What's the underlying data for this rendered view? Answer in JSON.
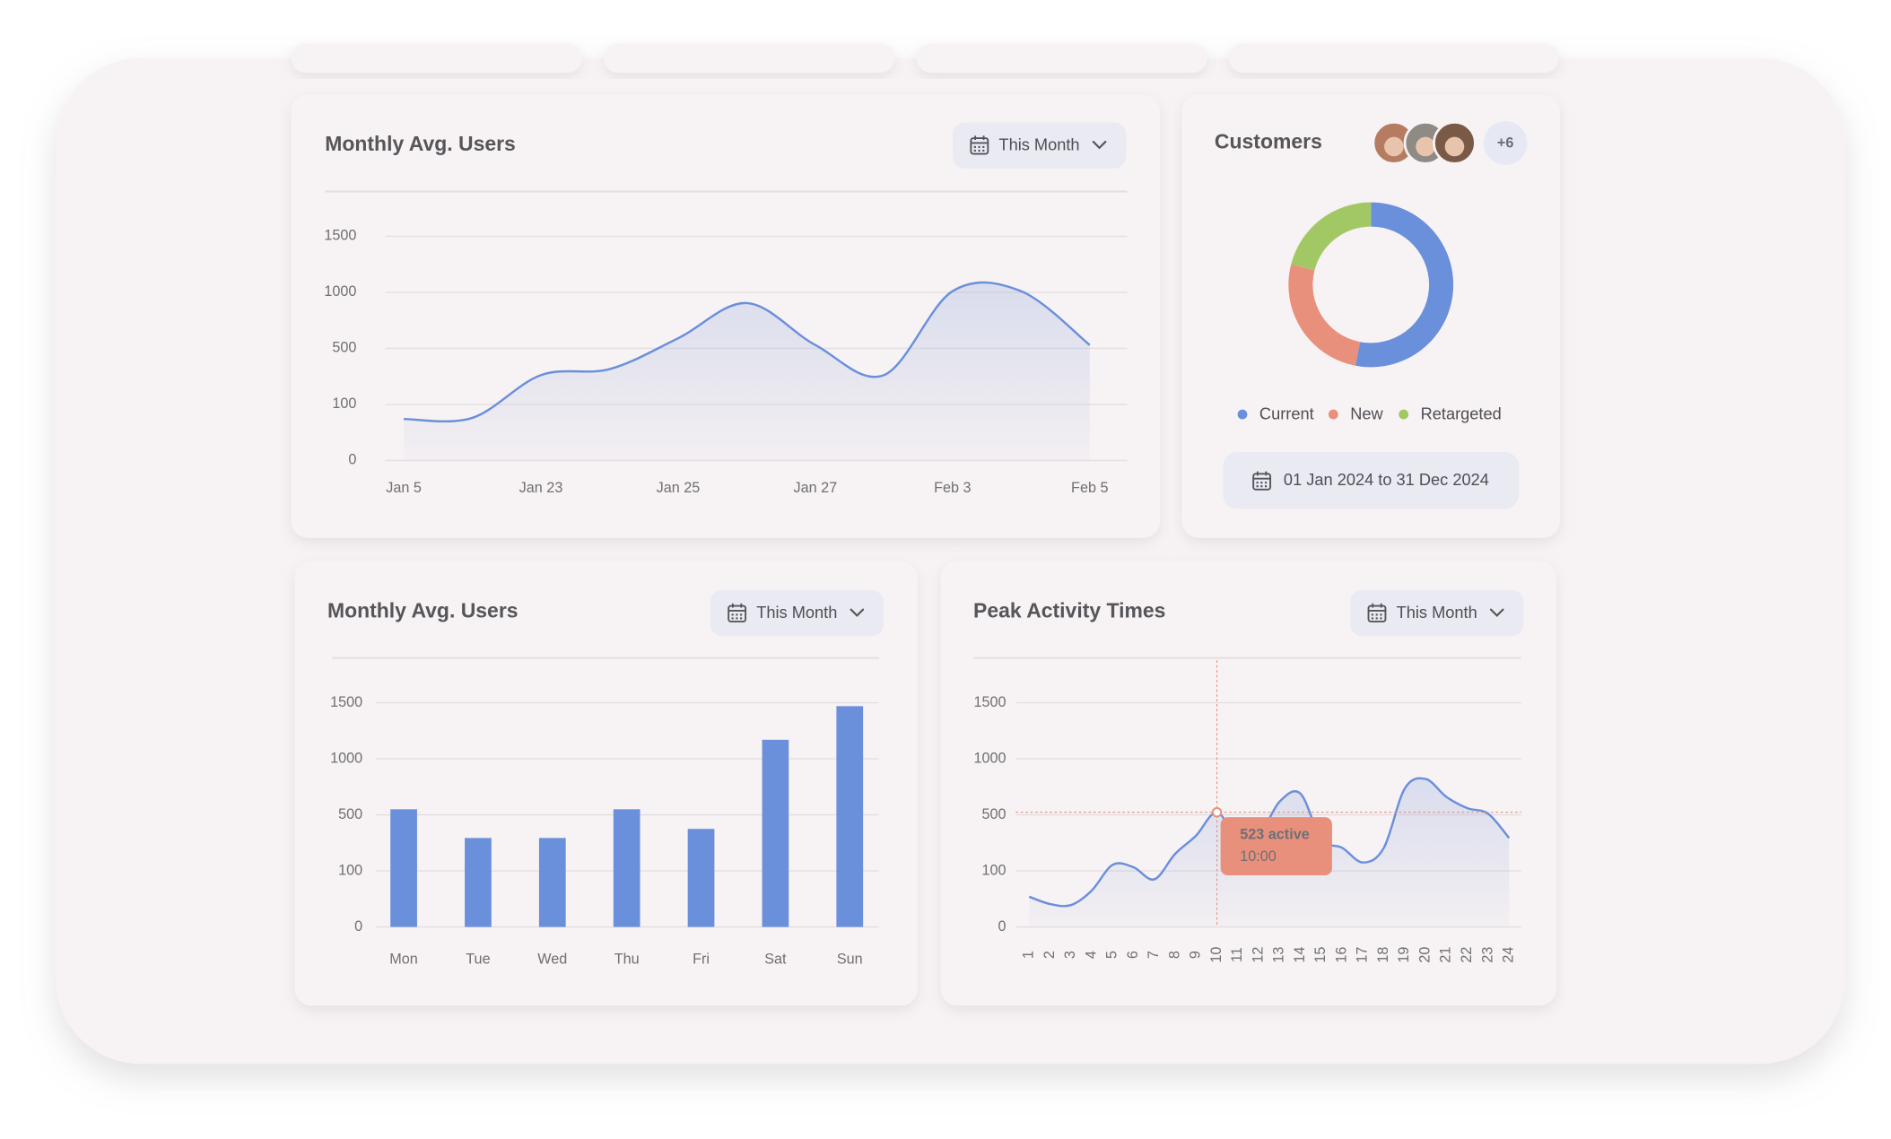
{
  "chart_data": [
    {
      "type": "line",
      "title": "Monthly Avg. Users",
      "filter": "This Month",
      "categories": [
        "Jan 5",
        null,
        "Jan 23",
        null,
        "Jan 25",
        null,
        "Jan 27",
        null,
        "Feb 3",
        null,
        "Feb 5"
      ],
      "values": [
        74,
        76,
        309,
        352,
        590,
        904,
        530,
        309,
        1010,
        1010,
        530
      ],
      "color": "#6a8fdb",
      "area": true,
      "ylim": [
        0,
        1500
      ],
      "yticks": [
        0,
        100,
        500,
        1000,
        1500
      ],
      "y_scale": "piecewise",
      "grid": true
    },
    {
      "type": "pie",
      "title": "Customers",
      "extra_count": "+6",
      "date_range": "01 Jan 2024 to 31 Dec 2024",
      "categories": [
        "Current",
        "New",
        "Retargeted"
      ],
      "values": [
        53,
        26,
        21
      ],
      "colors": [
        "#6a8fdb",
        "#e8907b",
        "#a2c865"
      ],
      "donut": true,
      "legend": "bottom"
    },
    {
      "type": "bar",
      "title": "Monthly Avg. Users",
      "filter": "This Month",
      "categories": [
        "Mon",
        "Tue",
        "Wed",
        "Thu",
        "Fri",
        "Sat",
        "Sun"
      ],
      "values": [
        550,
        335,
        335,
        550,
        400,
        1170,
        1470
      ],
      "color": "#6a8fdb",
      "ylim": [
        0,
        1500
      ],
      "yticks": [
        0,
        100,
        500,
        1000,
        1500
      ],
      "y_scale": "piecewise",
      "grid": true
    },
    {
      "type": "line",
      "title": "Peak Activity Times",
      "filter": "This Month",
      "x": [
        1,
        2,
        3,
        4,
        5,
        6,
        7,
        8,
        9,
        10,
        11,
        12,
        13,
        14,
        15,
        16,
        17,
        18,
        19,
        20,
        21,
        22,
        23,
        24
      ],
      "values": [
        54,
        41,
        39,
        65,
        143,
        126,
        85,
        222,
        352,
        523,
        326,
        352,
        617,
        690,
        326,
        265,
        160,
        265,
        735,
        820,
        660,
        560,
        510,
        335
      ],
      "color": "#6a8fdb",
      "area": true,
      "xlim": [
        1,
        24
      ],
      "xticks": [
        1,
        2,
        3,
        4,
        5,
        6,
        7,
        8,
        9,
        10,
        11,
        12,
        13,
        14,
        15,
        16,
        17,
        18,
        19,
        20,
        21,
        22,
        23,
        24
      ],
      "ylim": [
        0,
        1500
      ],
      "yticks": [
        0,
        100,
        500,
        1000,
        1500
      ],
      "y_scale": "piecewise",
      "grid": true,
      "annotation": {
        "index": 9,
        "text": "523 active",
        "time": "10:00",
        "color": "#e8907b"
      }
    }
  ]
}
